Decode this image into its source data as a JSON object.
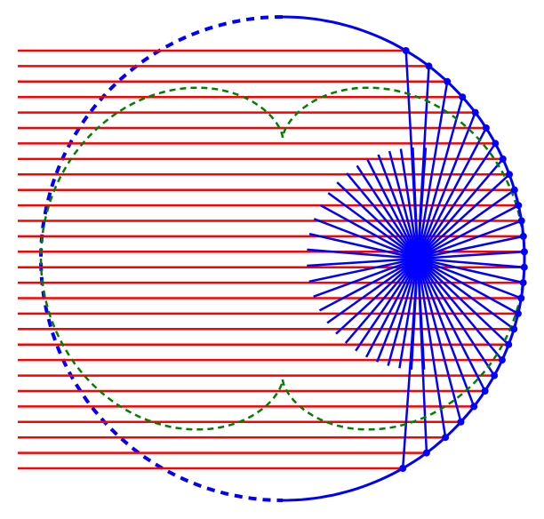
{
  "diagram": {
    "type": "caustic-reflection",
    "ray_count": 28,
    "colors": {
      "incoming_rays": "#ff0000",
      "mirror": "#0000ff",
      "reflected_rays": "#0000ff",
      "caustic": "#008000",
      "background": "#ffffff"
    }
  }
}
